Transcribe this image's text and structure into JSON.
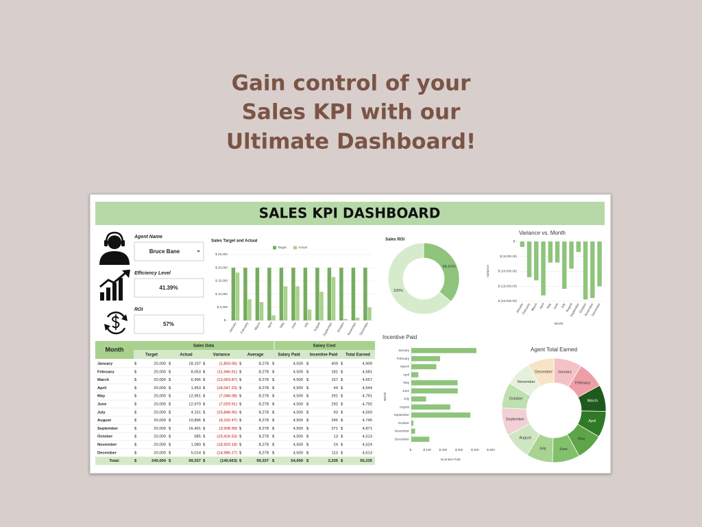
{
  "header": {
    "headline": [
      "Gain control of your",
      "Sales KPI with our",
      "Ultimate Dashboard!"
    ]
  },
  "dashboard": {
    "title": "SALES KPI DASHBOARD",
    "kpis": [
      {
        "label": "Agent Name",
        "value": "Bruce Bane"
      },
      {
        "label": "Efficiency Level",
        "value": "41.39%"
      },
      {
        "label": "ROI",
        "value": "57%"
      }
    ],
    "table": {
      "month_header": "Month",
      "groups": [
        "Sales Data",
        "Salary Cost"
      ],
      "columns": [
        "Target",
        "Actual",
        "Variance",
        "Average",
        "Salary Paid",
        "Incentive Paid",
        "Total Earned"
      ],
      "currency": "$",
      "rows": [
        [
          "January",
          "20,000",
          "18,197",
          "(1,803.06)",
          "8,278",
          "4,500",
          "409",
          "4,909"
        ],
        [
          "February",
          "20,000",
          "8,053",
          "(11,946.61)",
          "8,278",
          "4,500",
          "181",
          "4,681"
        ],
        [
          "March",
          "20,000",
          "6,996",
          "(13,003.87)",
          "8,278",
          "4,500",
          "157",
          "4,657"
        ],
        [
          "April",
          "20,000",
          "1,953",
          "(18,047.23)",
          "8,278",
          "4,500",
          "44",
          "4,544"
        ],
        [
          "May",
          "20,000",
          "12,951",
          "(7,048.08)",
          "8,278",
          "4,500",
          "291",
          "4,791"
        ],
        [
          "June",
          "20,000",
          "12,970",
          "(7,029.91)",
          "8,278",
          "4,500",
          "292",
          "4,792"
        ],
        [
          "July",
          "20,000",
          "4,151",
          "(15,848.95)",
          "8,278",
          "4,500",
          "93",
          "4,593"
        ],
        [
          "August",
          "20,000",
          "10,896",
          "(9,102.47)",
          "8,278",
          "4,500",
          "245",
          "4,745"
        ],
        [
          "September",
          "20,000",
          "16,491",
          "(3,508.99)",
          "8,278",
          "4,500",
          "371",
          "4,871"
        ],
        [
          "October",
          "20,000",
          "585",
          "(19,416.53)",
          "8,278",
          "4,500",
          "13",
          "4,513"
        ],
        [
          "November",
          "20,000",
          "1,080",
          "(18,920.18)",
          "8,278",
          "4,500",
          "24",
          "4,524"
        ],
        [
          "December",
          "20,000",
          "5,014",
          "(14,986.27)",
          "8,278",
          "4,500",
          "113",
          "4,613"
        ]
      ],
      "total": [
        "Total:",
        "240,000",
        "99,337",
        "(140,663)",
        "99,337",
        "54,000",
        "2,235",
        "56,235"
      ]
    }
  },
  "chart_data": [
    {
      "type": "bar",
      "title": "Sales Target and Actual",
      "categories": [
        "January",
        "February",
        "March",
        "April",
        "May",
        "June",
        "July",
        "August",
        "September",
        "October",
        "November",
        "December"
      ],
      "series": [
        {
          "name": "Target",
          "color": "#76ac5f",
          "values": [
            20000,
            20000,
            20000,
            20000,
            20000,
            20000,
            20000,
            20000,
            20000,
            20000,
            20000,
            20000
          ]
        },
        {
          "name": "Actual",
          "color": "#a9d18e",
          "values": [
            18197,
            8053,
            6996,
            1953,
            12951,
            12970,
            4151,
            10896,
            16491,
            585,
            1080,
            5014
          ]
        }
      ],
      "ylim": [
        0,
        25000
      ],
      "yticks": [
        {
          "value": 0,
          "label": "$ -"
        },
        {
          "value": 5000,
          "label": "$ 5,000"
        },
        {
          "value": 10000,
          "label": "$ 10,000"
        },
        {
          "value": 15000,
          "label": "$ 15,000"
        },
        {
          "value": 20000,
          "label": "$ 20,000"
        },
        {
          "value": 25000,
          "label": "$ 25,000"
        }
      ],
      "grid": true
    },
    {
      "type": "donut",
      "title": "Sales ROI",
      "values": [
        56.61,
        100
      ],
      "value_labels": [
        "56.61%",
        "100%"
      ],
      "colors": [
        "#8ec47b",
        "#d6ebcb"
      ]
    },
    {
      "type": "bar",
      "title": "Variance vs. Month",
      "xlabel": "Month",
      "ylabel": "Variance",
      "categories": [
        "January",
        "February",
        "March",
        "April",
        "May",
        "June",
        "July",
        "August",
        "September",
        "October",
        "November",
        "December"
      ],
      "values": [
        -1803.06,
        -11946.61,
        -13003.87,
        -18047.23,
        -7048.08,
        -7029.91,
        -15848.95,
        -9102.47,
        -3508.99,
        -19416.53,
        -18920.18,
        -14986.27
      ],
      "color": "#8ec47b",
      "ylim": [
        -20000,
        0
      ],
      "yticks": [
        {
          "value": 0,
          "label": "$ -"
        },
        {
          "value": -5000,
          "label": "$ (5,000.00)"
        },
        {
          "value": -10000,
          "label": "$ (10,000.00)"
        },
        {
          "value": -15000,
          "label": "$ (15,000.00)"
        },
        {
          "value": -20000,
          "label": "$ (20,000.00)"
        }
      ],
      "grid": true
    },
    {
      "type": "barh",
      "title": "Incentive Paid",
      "xlabel": "Incentive Paid",
      "ylabel": "Month",
      "categories": [
        "January",
        "February",
        "March",
        "April",
        "May",
        "June",
        "July",
        "August",
        "September",
        "October",
        "November",
        "December"
      ],
      "values": [
        409,
        181,
        157,
        44,
        291,
        292,
        93,
        245,
        371,
        13,
        24,
        113
      ],
      "color": "#8ec47b",
      "xlim": [
        0,
        500
      ],
      "xticks": [
        {
          "value": 0,
          "label": "$ -"
        },
        {
          "value": 100,
          "label": "$ 100"
        },
        {
          "value": 200,
          "label": "$ 200"
        },
        {
          "value": 300,
          "label": "$ 300"
        },
        {
          "value": 400,
          "label": "$ 400"
        },
        {
          "value": 500,
          "label": "$ 500"
        }
      ],
      "grid": false
    },
    {
      "type": "donut",
      "title": "Agent Total Earned",
      "categories": [
        "January",
        "February",
        "March",
        "April",
        "May",
        "June",
        "July",
        "August",
        "September",
        "October",
        "November",
        "December"
      ],
      "values": [
        4909,
        4681,
        4657,
        4544,
        4791,
        4792,
        4593,
        4745,
        4871,
        4513,
        4524,
        4613
      ],
      "colors": [
        "#f4c2c6",
        "#ee9fa6",
        "#1e5a1e",
        "#2f7a24",
        "#5ea54a",
        "#82c06c",
        "#a8d391",
        "#cfe6c2",
        "#f2d0d6",
        "#bfe0b0",
        "#e6f1dd",
        "#f6e4c6"
      ]
    }
  ]
}
